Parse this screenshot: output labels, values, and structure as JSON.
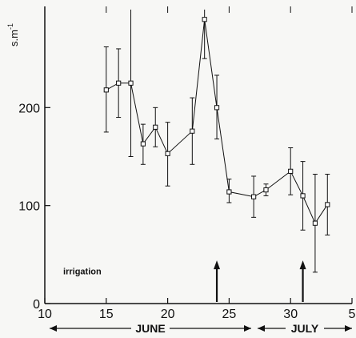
{
  "chart_data": {
    "type": "line",
    "ylabel": "s.m",
    "ylabel_superscript": "-1",
    "x_ticks": [
      10,
      15,
      20,
      25,
      30,
      5
    ],
    "y_ticks": [
      0,
      100,
      200
    ],
    "xlim": [
      10,
      35
    ],
    "ylim": [
      0,
      300
    ],
    "grid": false,
    "series": [
      {
        "marker": "square-open",
        "points": [
          {
            "day": 15,
            "y": 218,
            "err_low": 175,
            "err_high": 262
          },
          {
            "day": 16,
            "y": 225,
            "err_low": 190,
            "err_high": 260
          },
          {
            "day": 17,
            "y": 225,
            "err_low": 150,
            "err_high": 300
          },
          {
            "day": 18,
            "y": 163,
            "err_low": 142,
            "err_high": 183
          },
          {
            "day": 19,
            "y": 180,
            "err_low": 160,
            "err_high": 200
          },
          {
            "day": 20,
            "y": 153,
            "err_low": 120,
            "err_high": 185
          },
          {
            "day": 22,
            "y": 176,
            "err_low": 142,
            "err_high": 210
          },
          {
            "day": 23,
            "y": 290,
            "err_low": 250,
            "err_high": 300
          },
          {
            "day": 24,
            "y": 200,
            "err_low": 168,
            "err_high": 233
          },
          {
            "day": 25,
            "y": 114,
            "err_low": 103,
            "err_high": 127
          },
          {
            "day": 27,
            "y": 109,
            "err_low": 88,
            "err_high": 130
          },
          {
            "day": 28,
            "y": 116,
            "err_low": 110,
            "err_high": 122
          },
          {
            "day": 30,
            "y": 135,
            "err_low": 111,
            "err_high": 159
          },
          {
            "day": 31,
            "y": 110,
            "err_low": 75,
            "err_high": 145
          },
          {
            "day": 32,
            "y": 82,
            "err_low": 32,
            "err_high": 132
          },
          {
            "day": 33,
            "y": 101,
            "err_low": 70,
            "err_high": 132
          }
        ]
      }
    ],
    "annotations": {
      "irrigation_label": "irrigation",
      "irrigation_days": [
        24,
        31
      ]
    },
    "months": [
      {
        "label": "JUNE",
        "start": 10,
        "end": 30
      },
      {
        "label": "JULY",
        "start": 31,
        "end": 35
      }
    ]
  }
}
